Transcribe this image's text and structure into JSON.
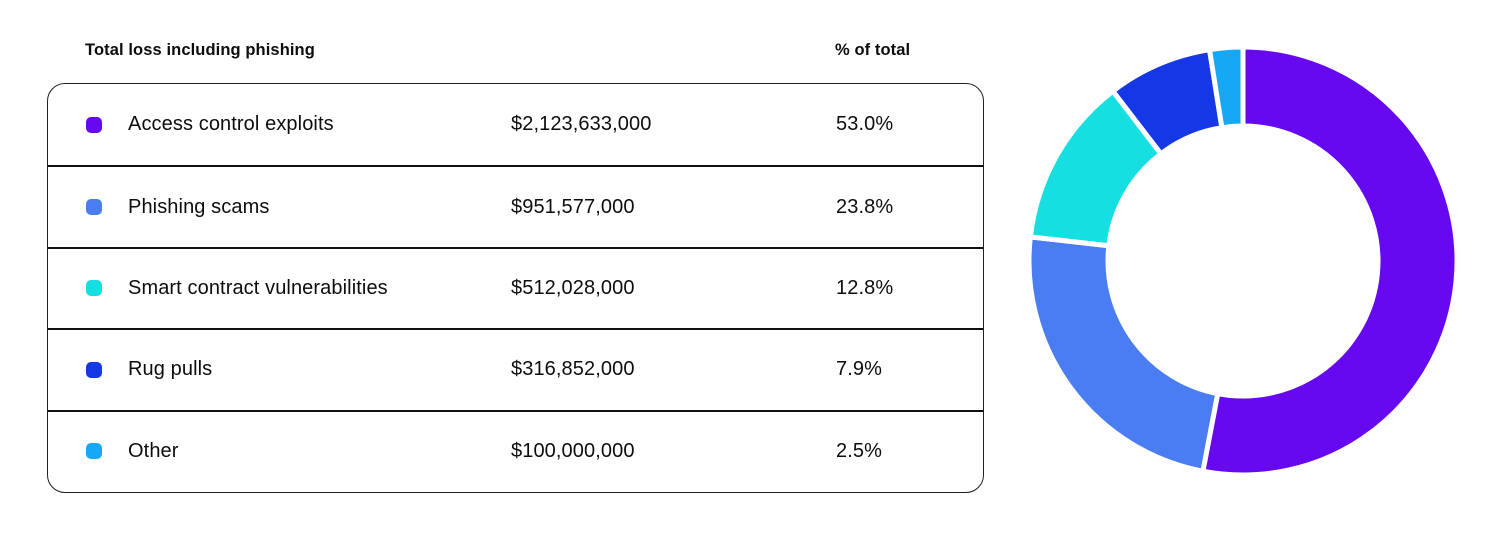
{
  "table": {
    "header": {
      "loss_label": "Total loss including phishing",
      "pct_label": "% of total"
    }
  },
  "chart_data": {
    "type": "pie",
    "subtype": "donut",
    "title": "Total loss including phishing",
    "categories": [
      "Access control exploits",
      "Phishing scams",
      "Smart contract vulnerabilities",
      "Rug pulls",
      "Other"
    ],
    "values": [
      2123633000,
      951577000,
      512028000,
      316852000,
      100000000
    ],
    "percentages": [
      53.0,
      23.8,
      12.8,
      7.9,
      2.5
    ],
    "value_labels": [
      "$2,123,633,000",
      "$951,577,000",
      "$512,028,000",
      "$316,852,000",
      "$100,000,000"
    ],
    "percent_labels": [
      "53.0%",
      "23.8%",
      "12.8%",
      "7.9%",
      "2.5%"
    ],
    "colors": [
      "#6709F0",
      "#4A7CF2",
      "#15DFE1",
      "#1637E6",
      "#16A8F4"
    ],
    "direction": "clockwise",
    "start_angle_deg": 0,
    "inner_radius_ratio": 0.63,
    "segment_gap_color": "#ffffff",
    "legend_position": "table-left"
  }
}
